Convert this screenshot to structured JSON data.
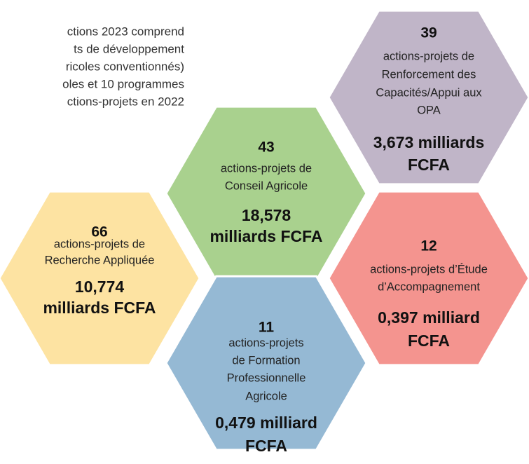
{
  "intro": {
    "lines": [
      "ctions 2023 comprend",
      "ts de développement",
      "ricoles conventionnés)",
      "oles et 10 programmes",
      "ctions-projets en 2022"
    ]
  },
  "hexagons": [
    {
      "count": "66",
      "description": [
        "actions-projets de",
        "Recherche Appliquée"
      ],
      "amount": [
        "10,774",
        "milliards FCFA"
      ],
      "color": "#fde3a2"
    },
    {
      "count": "43",
      "description": [
        "actions-projets de",
        "Conseil Agricole"
      ],
      "amount": [
        "18,578",
        "milliards FCFA"
      ],
      "color": "#a9d18e"
    },
    {
      "count": "39",
      "description": [
        "actions-projets de",
        "Renforcement des",
        "Capacités/Appui aux",
        "OPA"
      ],
      "amount": [
        "3,673 milliards",
        "FCFA"
      ],
      "color": "#c0b5c8"
    },
    {
      "count": "12",
      "description": [
        "actions-projets d’Étude",
        "d’Accompagnement"
      ],
      "amount": [
        "0,397 milliard",
        "FCFA"
      ],
      "color": "#f4948f"
    },
    {
      "count": "11",
      "description": [
        "actions-projets",
        "de Formation",
        "Professionnelle",
        "Agricole"
      ],
      "amount": [
        "0,479 milliard",
        "FCFA"
      ],
      "color": "#95b9d4"
    }
  ]
}
